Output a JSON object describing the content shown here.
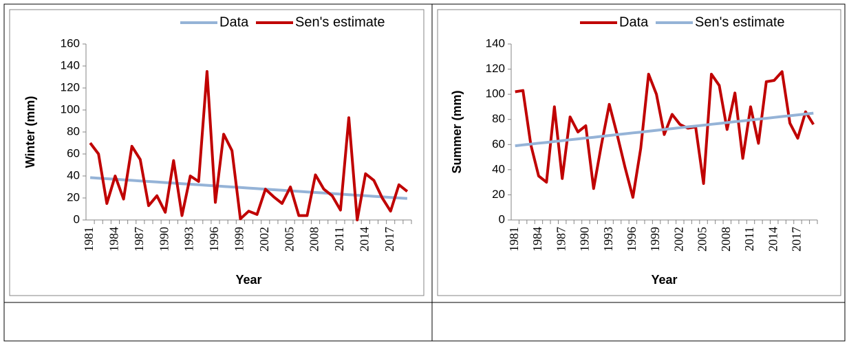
{
  "chart_data": [
    {
      "type": "line",
      "y_label": "Winter (mm)",
      "x_label": "Year",
      "categories": [
        "1981",
        null,
        null,
        "1984",
        null,
        null,
        "1987",
        null,
        null,
        "1990",
        null,
        null,
        "1993",
        null,
        null,
        "1996",
        null,
        null,
        "1999",
        null,
        null,
        "2002",
        null,
        null,
        "2005",
        null,
        null,
        "2008",
        null,
        null,
        "2011",
        null,
        null,
        "2014",
        null,
        null,
        "2017",
        null,
        null
      ],
      "series": [
        {
          "name": "Data",
          "color": "#95b3d7",
          "values": [
            38.5,
            38,
            37.5,
            37,
            36.5,
            36,
            35.5,
            35,
            34.5,
            34,
            33.5,
            33,
            32.5,
            32,
            31.5,
            31,
            30.5,
            30,
            29.5,
            29,
            28.5,
            28,
            27.5,
            27,
            26.5,
            26,
            25.5,
            25,
            24.5,
            24,
            23.5,
            23,
            22.5,
            22,
            21.5,
            21,
            20.5,
            20,
            19.5
          ]
        },
        {
          "name": "Sen's estimate",
          "color": "#c00000",
          "values": [
            70,
            60,
            15,
            40,
            19,
            67,
            55,
            13,
            22,
            7,
            54,
            4,
            40,
            35,
            135,
            16,
            78,
            63,
            1,
            8,
            5,
            28,
            21,
            15,
            30,
            4,
            4,
            41,
            28,
            22,
            9,
            93,
            0,
            42,
            36,
            20,
            8,
            32,
            26
          ]
        }
      ],
      "ylim": [
        0,
        160
      ],
      "yticks": [
        0,
        20,
        40,
        60,
        80,
        100,
        120,
        140,
        160
      ]
    },
    {
      "type": "line",
      "y_label": "Summer (mm)",
      "x_label": "Year",
      "categories": [
        "1981",
        null,
        null,
        "1984",
        null,
        null,
        "1987",
        null,
        null,
        "1990",
        null,
        null,
        "1993",
        null,
        null,
        "1996",
        null,
        null,
        "1999",
        null,
        null,
        "2002",
        null,
        null,
        "2005",
        null,
        null,
        "2008",
        null,
        null,
        "2011",
        null,
        null,
        "2014",
        null,
        null,
        "2017",
        null,
        null
      ],
      "series": [
        {
          "name": "Data",
          "color": "#c00000",
          "values": [
            102,
            103,
            60,
            35,
            30,
            90,
            33,
            82,
            70,
            75,
            25,
            60,
            92,
            68,
            42,
            18,
            57,
            116,
            100,
            68,
            84,
            76,
            73,
            74,
            29,
            116,
            107,
            72,
            101,
            49,
            90,
            61,
            110,
            111,
            118,
            77,
            65,
            86,
            76
          ]
        },
        {
          "name": "Sen's estimate",
          "color": "#95b3d7",
          "values": [
            59.0,
            59.7,
            60.4,
            61.1,
            61.7,
            62.4,
            63.1,
            63.8,
            64.5,
            65.2,
            65.8,
            66.5,
            67.2,
            67.9,
            68.6,
            69.3,
            69.9,
            70.6,
            71.3,
            72.0,
            72.7,
            73.4,
            74.1,
            74.7,
            75.4,
            76.1,
            76.8,
            77.5,
            78.2,
            78.8,
            79.5,
            80.2,
            80.9,
            81.6,
            82.3,
            82.9,
            83.6,
            84.3,
            85.0
          ]
        }
      ],
      "ylim": [
        0,
        140
      ],
      "yticks": [
        0,
        20,
        40,
        60,
        80,
        100,
        120,
        140
      ]
    }
  ]
}
